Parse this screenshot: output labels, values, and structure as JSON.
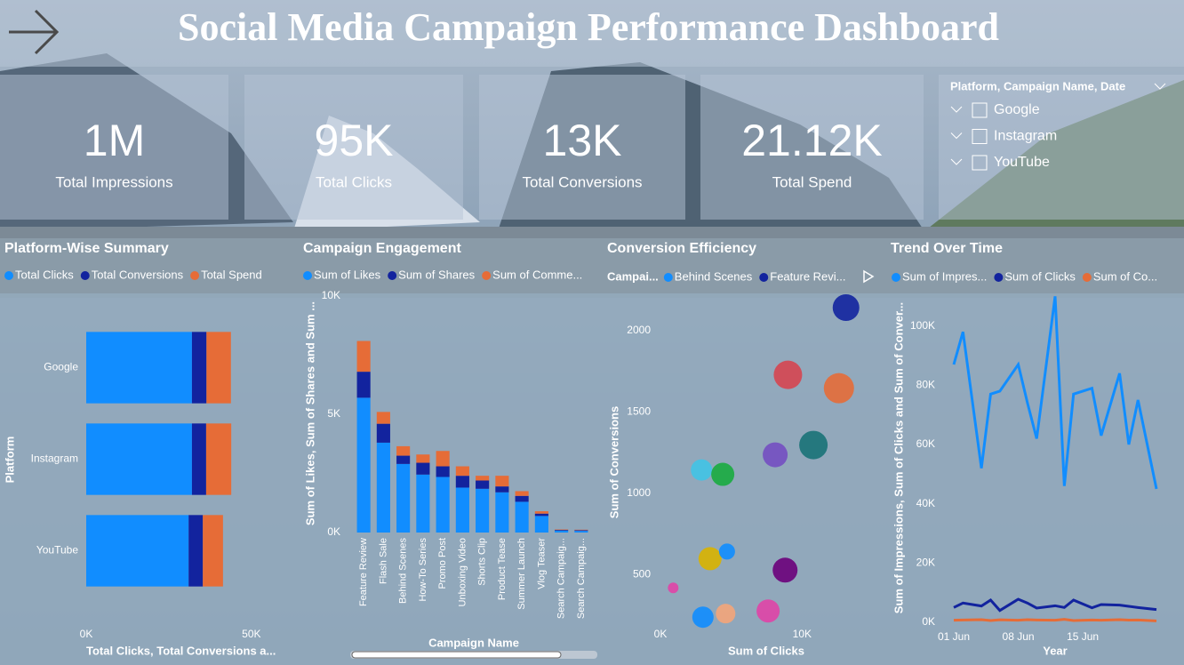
{
  "title": "Social Media Campaign Performance Dashboard",
  "kpis": [
    {
      "value": "1M",
      "label": "Total Impressions"
    },
    {
      "value": "95K",
      "label": "Total Clicks"
    },
    {
      "value": "13K",
      "label": "Total Conversions"
    },
    {
      "value": "21.12K",
      "label": "Total Spend"
    }
  ],
  "slicer": {
    "title": "Platform, Campaign Name, Date",
    "items": [
      "Google",
      "Instagram",
      "YouTube"
    ]
  },
  "chart_data": [
    {
      "type": "hbar",
      "title": "Platform-Wise Summary",
      "x_label": "Total Clicks, Total Conversions a...",
      "y_label": "Platform",
      "categories": [
        "Google",
        "Instagram",
        "YouTube"
      ],
      "series": [
        {
          "name": "Total Clicks",
          "color": "#118DFF",
          "values": [
            32000,
            32000,
            31000
          ]
        },
        {
          "name": "Total Conversions",
          "color": "#12239E",
          "values": [
            4400,
            4300,
            4300
          ]
        },
        {
          "name": "Total Spend",
          "color": "#E66C37",
          "values": [
            7400,
            7600,
            6100
          ]
        }
      ],
      "xlim": [
        0,
        60000
      ],
      "xticks": [
        {
          "value": 0,
          "label": "0K"
        },
        {
          "value": 50000,
          "label": "50K"
        }
      ]
    },
    {
      "type": "column",
      "title": "Campaign Engagement",
      "x_label": "Campaign Name",
      "y_label": "Sum of Likes, Sum of Shares and Sum ...",
      "categories": [
        "Feature Review",
        "Flash Sale",
        "Behind Scenes",
        "How-To Series",
        "Promo Post",
        "Unboxing Video",
        "Shorts Clip",
        "Product Tease",
        "Summer Launch",
        "Vlog Teaser",
        "Search Campaig...",
        "Search Campaig..."
      ],
      "series": [
        {
          "name": "Sum of Likes",
          "color": "#118DFF",
          "values": [
            5700,
            3800,
            2900,
            2450,
            2350,
            1900,
            1850,
            1700,
            1300,
            700,
            80,
            70
          ]
        },
        {
          "name": "Sum of Shares",
          "color": "#12239E",
          "values": [
            1100,
            800,
            350,
            500,
            450,
            500,
            350,
            250,
            250,
            100,
            30,
            30
          ]
        },
        {
          "name": "Sum of Comme...",
          "color": "#E66C37",
          "values": [
            1300,
            500,
            400,
            350,
            650,
            400,
            200,
            450,
            200,
            100,
            20,
            20
          ]
        }
      ],
      "ylim": [
        0,
        10000
      ],
      "yticks": [
        {
          "value": 0,
          "label": "0K"
        },
        {
          "value": 5000,
          "label": "5K"
        },
        {
          "value": 10000,
          "label": "10K"
        }
      ]
    },
    {
      "type": "scatter",
      "title": "Conversion Efficiency",
      "x_label": "Sum of Clicks",
      "y_label": "Sum of Conversions",
      "legend_title": "Campai...",
      "legend": [
        {
          "name": "Behind Scenes",
          "color": "#118DFF"
        },
        {
          "name": "Feature Revi...",
          "color": "#12239E"
        }
      ],
      "x": [
        13100,
        9000,
        12600,
        10800,
        8100,
        2900,
        4400,
        3500,
        4700,
        8800,
        900,
        3000,
        4600,
        7600
      ],
      "values": [
        2140,
        1727,
        1645,
        1296,
        1236,
        1143,
        1116,
        598,
        642,
        528,
        419,
        239,
        261,
        277
      ],
      "sizes": [
        15,
        16,
        17,
        16,
        14,
        12,
        13,
        13,
        9,
        14,
        6,
        12,
        11,
        13
      ],
      "colors": [
        "#12239E",
        "#D64550",
        "#E66C37",
        "#197278",
        "#744EC2",
        "#41C3E6",
        "#1AAB40",
        "#D9B300",
        "#118DFF",
        "#6B007B",
        "#E044A7",
        "#118DFF",
        "#F4A57A",
        "#E044A7"
      ],
      "xlim": [
        0,
        15500
      ],
      "ylim": [
        180,
        2200
      ],
      "xticks": [
        {
          "value": 0,
          "label": "0K"
        },
        {
          "value": 10000,
          "label": "10K"
        }
      ],
      "yticks": [
        500,
        1000,
        1500,
        2000
      ]
    },
    {
      "type": "line",
      "title": "Trend Over Time",
      "x_label": "Year",
      "y_label": "Sum of Impressions, Sum of Clicks and Sum of Conver...",
      "x": [
        "01 Jun",
        "02 Jun",
        "04 Jun",
        "05 Jun",
        "06 Jun",
        "08 Jun",
        "09 Jun",
        "10 Jun",
        "12 Jun",
        "13 Jun",
        "14 Jun",
        "16 Jun",
        "17 Jun",
        "19 Jun",
        "20 Jun",
        "21 Jun",
        "23 Jun"
      ],
      "series": [
        {
          "name": "Sum of Impres...",
          "color": "#118DFF",
          "values": [
            87000,
            98000,
            52000,
            77000,
            78000,
            87000,
            74000,
            62000,
            110000,
            46000,
            77000,
            79000,
            63000,
            84000,
            60000,
            75000,
            45000
          ]
        },
        {
          "name": "Sum of Clicks",
          "color": "#12239E",
          "values": [
            5000,
            6500,
            5500,
            7500,
            4000,
            7800,
            6500,
            4800,
            5600,
            5000,
            7500,
            4900,
            6000,
            5800,
            5400,
            5000,
            4300
          ]
        },
        {
          "name": "Sum of Co...",
          "color": "#E66C37",
          "values": [
            700,
            800,
            900,
            600,
            850,
            700,
            900,
            800,
            700,
            1000,
            600,
            800,
            700,
            900,
            750,
            800,
            500
          ]
        }
      ],
      "xlim": [
        "01 Jun",
        "23 Jun"
      ],
      "xticks": [
        "01 Jun",
        "08 Jun",
        "15 Jun"
      ],
      "ylim": [
        0,
        110000
      ],
      "yticks": [
        {
          "value": 0,
          "label": "0K"
        },
        {
          "value": 20000,
          "label": "20K"
        },
        {
          "value": 40000,
          "label": "40K"
        },
        {
          "value": 60000,
          "label": "60K"
        },
        {
          "value": 80000,
          "label": "80K"
        },
        {
          "value": 100000,
          "label": "100K"
        }
      ]
    }
  ]
}
